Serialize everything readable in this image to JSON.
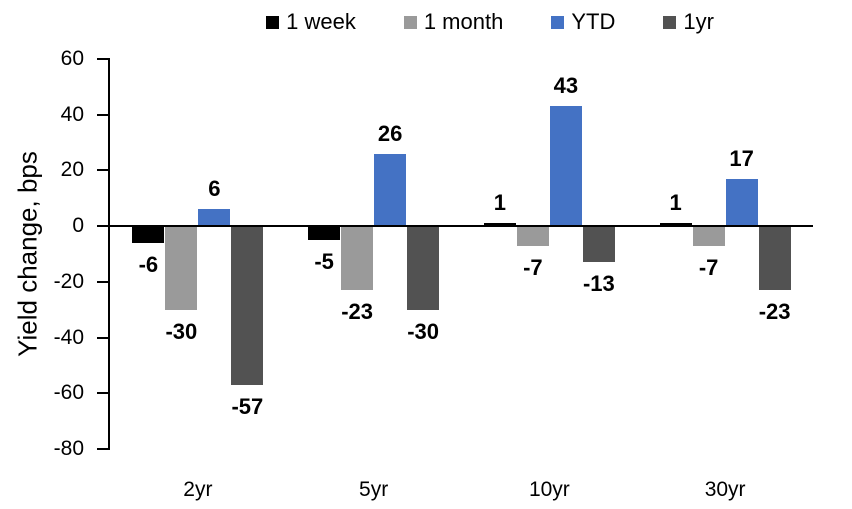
{
  "chart_data": {
    "type": "bar",
    "title": "",
    "xlabel": "",
    "ylabel": "Yield change, bps",
    "categories": [
      "2yr",
      "5yr",
      "10yr",
      "30yr"
    ],
    "series": [
      {
        "name": "1 week",
        "color": "#000000",
        "values": [
          -6,
          -5,
          1,
          1
        ]
      },
      {
        "name": "1 month",
        "color": "#9A9A9A",
        "values": [
          -30,
          -23,
          -7,
          -7
        ]
      },
      {
        "name": "YTD",
        "color": "#4472C4",
        "values": [
          6,
          26,
          43,
          17
        ]
      },
      {
        "name": "1yr",
        "color": "#525252",
        "values": [
          -57,
          -30,
          -13,
          -23
        ]
      }
    ],
    "ylim": [
      -80,
      60
    ],
    "yticks": [
      60,
      40,
      20,
      0,
      -20,
      -40,
      -60,
      -80
    ],
    "data_labels": true,
    "grid": false,
    "legend_position": "top",
    "axis_color": "#000000"
  }
}
